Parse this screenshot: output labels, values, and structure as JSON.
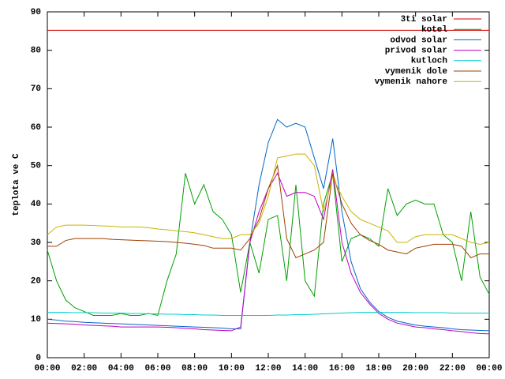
{
  "chart_data": {
    "type": "line",
    "ylabel": "teplota ve C",
    "x": [
      0,
      0.5,
      1,
      1.5,
      2,
      2.5,
      3,
      3.5,
      4,
      4.5,
      5,
      5.5,
      6,
      6.5,
      7,
      7.5,
      8,
      8.5,
      9,
      9.5,
      10,
      10.5,
      11,
      11.5,
      12,
      12.5,
      13,
      13.5,
      14,
      14.5,
      15,
      15.5,
      16,
      16.5,
      17,
      17.5,
      18,
      18.5,
      19,
      19.5,
      20,
      20.5,
      21,
      21.5,
      22,
      22.5,
      23,
      23.5,
      24
    ],
    "xlim": [
      0,
      24
    ],
    "xticks": [
      {
        "value": 0,
        "label": "00:00"
      },
      {
        "value": 2,
        "label": "02:00"
      },
      {
        "value": 4,
        "label": "04:00"
      },
      {
        "value": 6,
        "label": "06:00"
      },
      {
        "value": 8,
        "label": "08:00"
      },
      {
        "value": 10,
        "label": "10:00"
      },
      {
        "value": 12,
        "label": "12:00"
      },
      {
        "value": 14,
        "label": "14:00"
      },
      {
        "value": 16,
        "label": "16:00"
      },
      {
        "value": 18,
        "label": "18:00"
      },
      {
        "value": 20,
        "label": "20:00"
      },
      {
        "value": 22,
        "label": "22:00"
      },
      {
        "value": 24,
        "label": "00:00"
      }
    ],
    "ylim": [
      0,
      90
    ],
    "yticks": [
      0,
      10,
      20,
      30,
      40,
      50,
      60,
      70,
      80,
      90
    ],
    "legend": "top-right",
    "series": [
      {
        "name": "3ti solar",
        "color": "#d00000",
        "values": [
          85.2,
          85.2,
          85.2,
          85.2,
          85.2,
          85.2,
          85.2,
          85.2,
          85.2,
          85.2,
          85.2,
          85.2,
          85.2,
          85.2,
          85.2,
          85.2,
          85.2,
          85.2,
          85.2,
          85.2,
          85.2,
          85.2,
          85.2,
          85.2,
          85.2,
          85.2,
          85.2,
          85.2,
          85.2,
          85.2,
          85.2,
          85.2,
          85.2,
          85.2,
          85.2,
          85.2,
          85.2,
          85.2,
          85.2,
          85.2,
          85.2,
          85.2,
          85.2,
          85.2,
          85.2,
          85.2,
          85.2,
          85.2,
          85.2
        ]
      },
      {
        "name": "kotel",
        "color": "#00a000",
        "values": [
          28,
          20,
          15,
          13,
          12,
          11,
          11,
          11,
          11.5,
          11,
          11,
          11.5,
          11,
          20,
          27,
          48,
          40,
          45,
          38,
          36,
          32,
          17,
          30,
          22,
          36,
          37,
          20,
          45,
          20,
          16,
          40,
          48,
          25,
          31,
          32,
          31,
          29,
          44,
          37,
          40,
          41,
          40,
          40,
          32,
          30,
          20,
          38,
          21,
          16.5
        ]
      },
      {
        "name": "odvod solar",
        "color": "#0066cc",
        "values": [
          10,
          9.8,
          9.5,
          9.4,
          9.2,
          9.1,
          9,
          8.9,
          8.8,
          8.7,
          8.6,
          8.5,
          8.4,
          8.3,
          8.2,
          8.1,
          8,
          7.9,
          7.8,
          7.7,
          7.5,
          7.5,
          30,
          45,
          56,
          62,
          60,
          61,
          60,
          52,
          44,
          57,
          38,
          25,
          18,
          14.5,
          12,
          10.5,
          9.5,
          9,
          8.5,
          8.2,
          8,
          7.8,
          7.5,
          7.3,
          7.2,
          7.1,
          7
        ]
      },
      {
        "name": "privod solar",
        "color": "#c000c0",
        "values": [
          9,
          8.9,
          8.8,
          8.7,
          8.5,
          8.4,
          8.3,
          8.2,
          8,
          8,
          8,
          8,
          8,
          7.9,
          7.8,
          7.6,
          7.5,
          7.3,
          7.2,
          7.1,
          7,
          8,
          30,
          38,
          44,
          48,
          42,
          43,
          43,
          42,
          36,
          49,
          30,
          22,
          17,
          14,
          11.5,
          10,
          9,
          8.5,
          8,
          7.8,
          7.5,
          7.3,
          7,
          6.8,
          6.5,
          6.3,
          6.2
        ]
      },
      {
        "name": "kutloch",
        "color": "#00cccc",
        "values": [
          11.8,
          11.8,
          11.8,
          11.7,
          11.7,
          11.7,
          11.6,
          11.6,
          11.6,
          11.5,
          11.5,
          11.4,
          11.4,
          11.3,
          11.3,
          11.2,
          11.2,
          11.1,
          11.1,
          11,
          11,
          11,
          11,
          11,
          11,
          11.1,
          11.1,
          11.2,
          11.2,
          11.3,
          11.4,
          11.5,
          11.6,
          11.7,
          11.8,
          11.8,
          11.8,
          11.8,
          11.8,
          11.8,
          11.7,
          11.7,
          11.7,
          11.7,
          11.6,
          11.6,
          11.6,
          11.6,
          11.6
        ]
      },
      {
        "name": "vymenik dole",
        "color": "#a04000",
        "values": [
          29,
          29,
          30.5,
          31,
          31,
          31,
          31,
          30.8,
          30.7,
          30.6,
          30.5,
          30.4,
          30.3,
          30.2,
          30,
          29.8,
          29.5,
          29.2,
          28.5,
          28.5,
          28.5,
          28,
          31,
          36,
          44,
          50,
          31,
          26,
          27,
          28,
          30,
          48,
          40,
          35,
          32,
          30.5,
          29.5,
          28,
          27.5,
          27,
          28.5,
          29,
          29.5,
          29.5,
          29.5,
          29,
          26,
          27,
          27
        ]
      },
      {
        "name": "vymenik nahore",
        "color": "#c8b400",
        "values": [
          32,
          34,
          34.5,
          34.5,
          34.5,
          34.4,
          34.3,
          34.2,
          34,
          34,
          34,
          33.8,
          33.5,
          33.3,
          33,
          32.8,
          32.5,
          32,
          31.5,
          31,
          31,
          32,
          32,
          35,
          42,
          52,
          52.5,
          53,
          53,
          50,
          38,
          47,
          42,
          38,
          36,
          35,
          34,
          33,
          30,
          30,
          31.5,
          32,
          32,
          32,
          32,
          31,
          30,
          29.5,
          30
        ]
      }
    ]
  }
}
